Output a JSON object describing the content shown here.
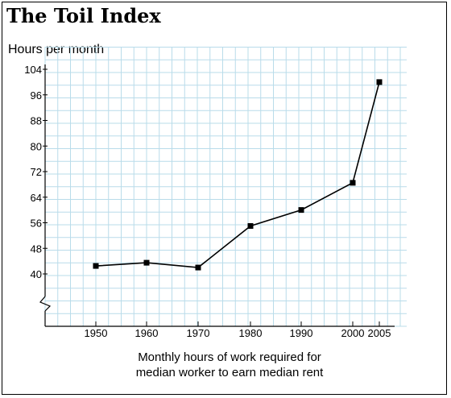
{
  "chart_data": {
    "type": "line",
    "title": "The Toil Index",
    "ylabel": "Hours per month",
    "xlabel_lines": [
      "Monthly hours of work required for",
      "median worker to earn median rent"
    ],
    "x": [
      1950,
      1960,
      1970,
      1980,
      1990,
      2000,
      2005
    ],
    "x_ticks": [
      "1950",
      "1960",
      "1970",
      "1980",
      "1990",
      "2000",
      "2005"
    ],
    "y_ticks": [
      "40",
      "48",
      "56",
      "64",
      "72",
      "80",
      "88",
      "96",
      "104"
    ],
    "ylim": [
      40,
      104
    ],
    "axis_break": true,
    "grid": true,
    "series": [
      {
        "values": [
          42.5,
          43.5,
          42,
          55,
          60,
          68.5,
          100
        ]
      }
    ],
    "colors": {
      "line": "#000000",
      "grid": "#b9dcea",
      "axis": "#000000"
    }
  }
}
